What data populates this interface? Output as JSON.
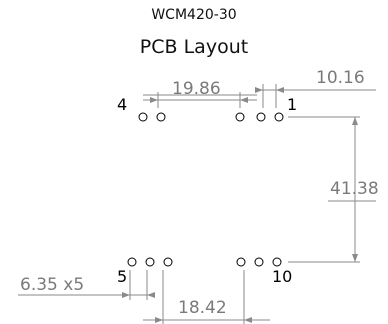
{
  "title": "WCM420-30",
  "subtitle": "PCB Layout",
  "pin_labels": {
    "pin4": "4",
    "pin1": "1",
    "pin5": "5",
    "pin10": "10"
  },
  "dimensions": {
    "top_inner": "19.86",
    "top_right": "10.16",
    "vertical": "41.38",
    "pitch_left": "6.35 x5",
    "bottom_gap": "18.42"
  }
}
